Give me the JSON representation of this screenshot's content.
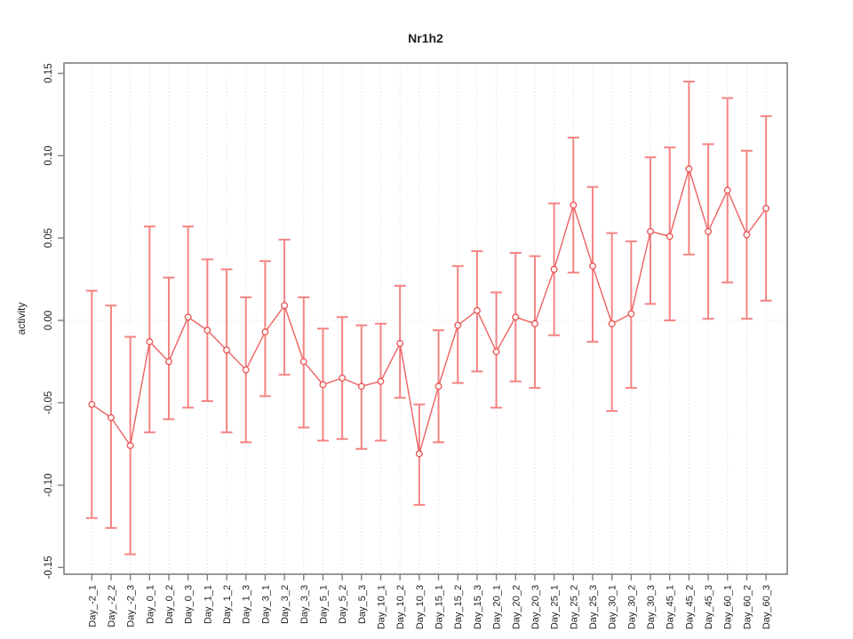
{
  "chart_data": {
    "type": "scatter",
    "title": "Nr1h2",
    "xlabel": "",
    "ylabel": "activity",
    "ylim": [
      -0.15,
      0.15
    ],
    "yticks": [
      -0.15,
      -0.1,
      -0.05,
      0.0,
      0.05,
      0.1,
      0.15
    ],
    "grid": "vertical dotted line at every category; horizontal dotted line at y=0",
    "legend_position": "none",
    "categories": [
      "Day_-2_1",
      "Day_-2_2",
      "Day_-2_3",
      "Day_0_1",
      "Day_0_2",
      "Day_0_3",
      "Day_1_1",
      "Day_1_2",
      "Day_1_3",
      "Day_3_1",
      "Day_3_2",
      "Day_3_3",
      "Day_5_1",
      "Day_5_2",
      "Day_5_3",
      "Day_10_1",
      "Day_10_2",
      "Day_10_3",
      "Day_15_1",
      "Day_15_2",
      "Day_15_3",
      "Day_20_1",
      "Day_20_2",
      "Day_20_3",
      "Day_25_1",
      "Day_25_2",
      "Day_25_3",
      "Day_30_1",
      "Day_30_2",
      "Day_30_3",
      "Day_45_1",
      "Day_45_2",
      "Day_45_3",
      "Day_60_1",
      "Day_60_2",
      "Day_60_3"
    ],
    "series": [
      {
        "name": "activity",
        "marker": "open-circle",
        "values": [
          -0.051,
          -0.059,
          -0.076,
          -0.013,
          -0.025,
          0.002,
          -0.006,
          -0.018,
          -0.03,
          -0.007,
          0.009,
          -0.025,
          -0.039,
          -0.035,
          -0.04,
          -0.037,
          -0.014,
          -0.081,
          -0.04,
          -0.003,
          0.006,
          -0.019,
          0.002,
          -0.002,
          0.031,
          0.07,
          0.033,
          -0.002,
          0.004,
          0.054,
          0.051,
          0.092,
          0.054,
          0.079,
          0.052,
          0.068
        ],
        "error_low": [
          -0.12,
          -0.126,
          -0.142,
          -0.068,
          -0.06,
          -0.053,
          -0.049,
          -0.068,
          -0.074,
          -0.046,
          -0.033,
          -0.065,
          -0.073,
          -0.072,
          -0.078,
          -0.073,
          -0.047,
          -0.112,
          -0.074,
          -0.038,
          -0.031,
          -0.053,
          -0.037,
          -0.041,
          -0.009,
          0.029,
          -0.013,
          -0.055,
          -0.041,
          0.01,
          0.0,
          0.04,
          0.001,
          0.023,
          0.001,
          0.012
        ],
        "error_high": [
          0.018,
          0.009,
          -0.01,
          0.057,
          0.026,
          0.057,
          0.037,
          0.031,
          0.014,
          0.036,
          0.049,
          0.014,
          -0.005,
          0.002,
          -0.003,
          -0.002,
          0.021,
          -0.051,
          -0.006,
          0.033,
          0.042,
          0.017,
          0.041,
          0.039,
          0.071,
          0.111,
          0.081,
          0.053,
          0.048,
          0.099,
          0.105,
          0.145,
          0.107,
          0.135,
          0.103,
          0.124
        ]
      }
    ],
    "colors": {
      "point": "#e65454",
      "line": "#ee6161",
      "error_bar": "#f58383",
      "grid": "#dadada",
      "zero_line": "#dcdcdc",
      "axis_box": "#7f7f7f",
      "text": "#1f1f1f"
    }
  }
}
